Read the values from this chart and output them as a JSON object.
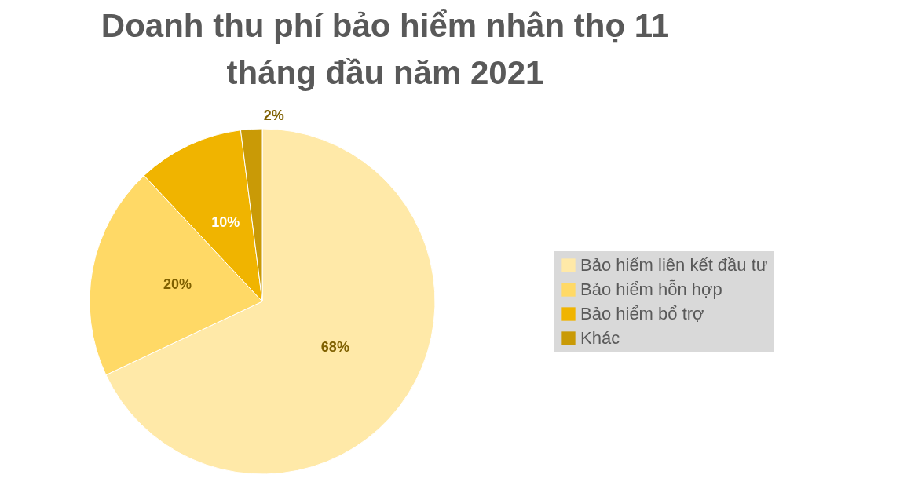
{
  "chart_data": {
    "type": "pie",
    "title": "Doanh thu phí bảo hiểm nhân thọ 11 tháng đầu năm 2021",
    "categories": [
      "Bảo hiểm liên kết đầu tư",
      "Bảo hiểm hỗn hợp",
      "Bảo hiểm bổ trợ",
      "Khác"
    ],
    "values": [
      68,
      20,
      10,
      2
    ],
    "colors": [
      "#ffe9a8",
      "#ffd966",
      "#f0b400",
      "#c99a06"
    ],
    "value_labels": [
      "68%",
      "20%",
      "10%",
      "2%"
    ],
    "legend": "right"
  }
}
